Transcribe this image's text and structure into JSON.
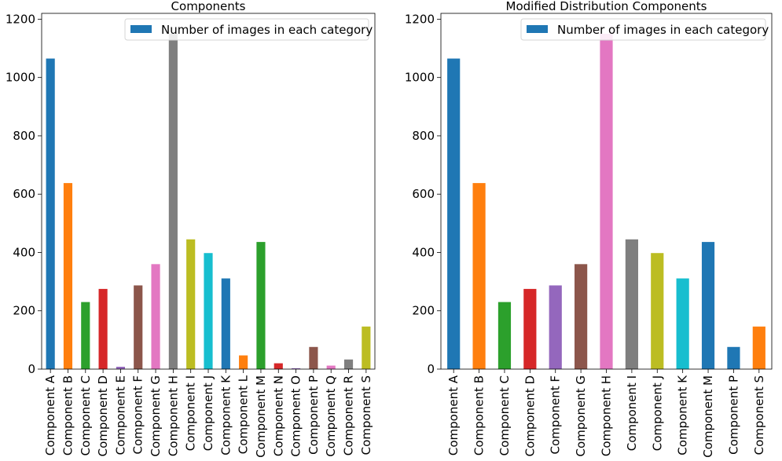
{
  "chart_data": [
    {
      "type": "bar",
      "title": "Components",
      "xlabel": "",
      "ylabel": "",
      "ylim": [
        0,
        1220
      ],
      "yticks": [
        0,
        200,
        400,
        600,
        800,
        1000,
        1200
      ],
      "grid": false,
      "legend_position": "top-right",
      "categories": [
        "Component A",
        "Component B",
        "Component C",
        "Component D",
        "Component E",
        "Component F",
        "Component G",
        "Component H",
        "Component I",
        "Component J",
        "Component K",
        "Component L",
        "Component M",
        "Component N",
        "Component O",
        "Component P",
        "Component Q",
        "Component R",
        "Component S"
      ],
      "colors": [
        "#1f77b4",
        "#ff7f0e",
        "#2ca02c",
        "#d62728",
        "#9467bd",
        "#8c564b",
        "#e377c2",
        "#7f7f7f",
        "#bcbd22",
        "#17becf",
        "#1f77b4",
        "#ff7f0e",
        "#2ca02c",
        "#d62728",
        "#9467bd",
        "#8c564b",
        "#e377c2",
        "#7f7f7f",
        "#bcbd22"
      ],
      "series": [
        {
          "name": "Number of images in each category",
          "values": [
            1065,
            638,
            230,
            275,
            8,
            287,
            360,
            1150,
            445,
            398,
            311,
            47,
            436,
            20,
            3,
            76,
            12,
            33,
            146
          ]
        }
      ]
    },
    {
      "type": "bar",
      "title": "Modified Distribution Components",
      "xlabel": "",
      "ylabel": "",
      "ylim": [
        0,
        1220
      ],
      "yticks": [
        0,
        200,
        400,
        600,
        800,
        1000,
        1200
      ],
      "grid": false,
      "legend_position": "top-right",
      "categories": [
        "Component A",
        "Component B",
        "Component C",
        "Component D",
        "Component F",
        "Component G",
        "Component H",
        "Component I",
        "Component J",
        "Component K",
        "Component M",
        "Component P",
        "Component S"
      ],
      "colors": [
        "#1f77b4",
        "#ff7f0e",
        "#2ca02c",
        "#d62728",
        "#9467bd",
        "#8c564b",
        "#e377c2",
        "#7f7f7f",
        "#bcbd22",
        "#17becf",
        "#1f77b4",
        "#1f77b4",
        "#ff7f0e"
      ],
      "series": [
        {
          "name": "Number of images in each category",
          "values": [
            1065,
            638,
            230,
            275,
            287,
            360,
            1150,
            445,
            398,
            311,
            436,
            76,
            146
          ]
        }
      ]
    }
  ]
}
